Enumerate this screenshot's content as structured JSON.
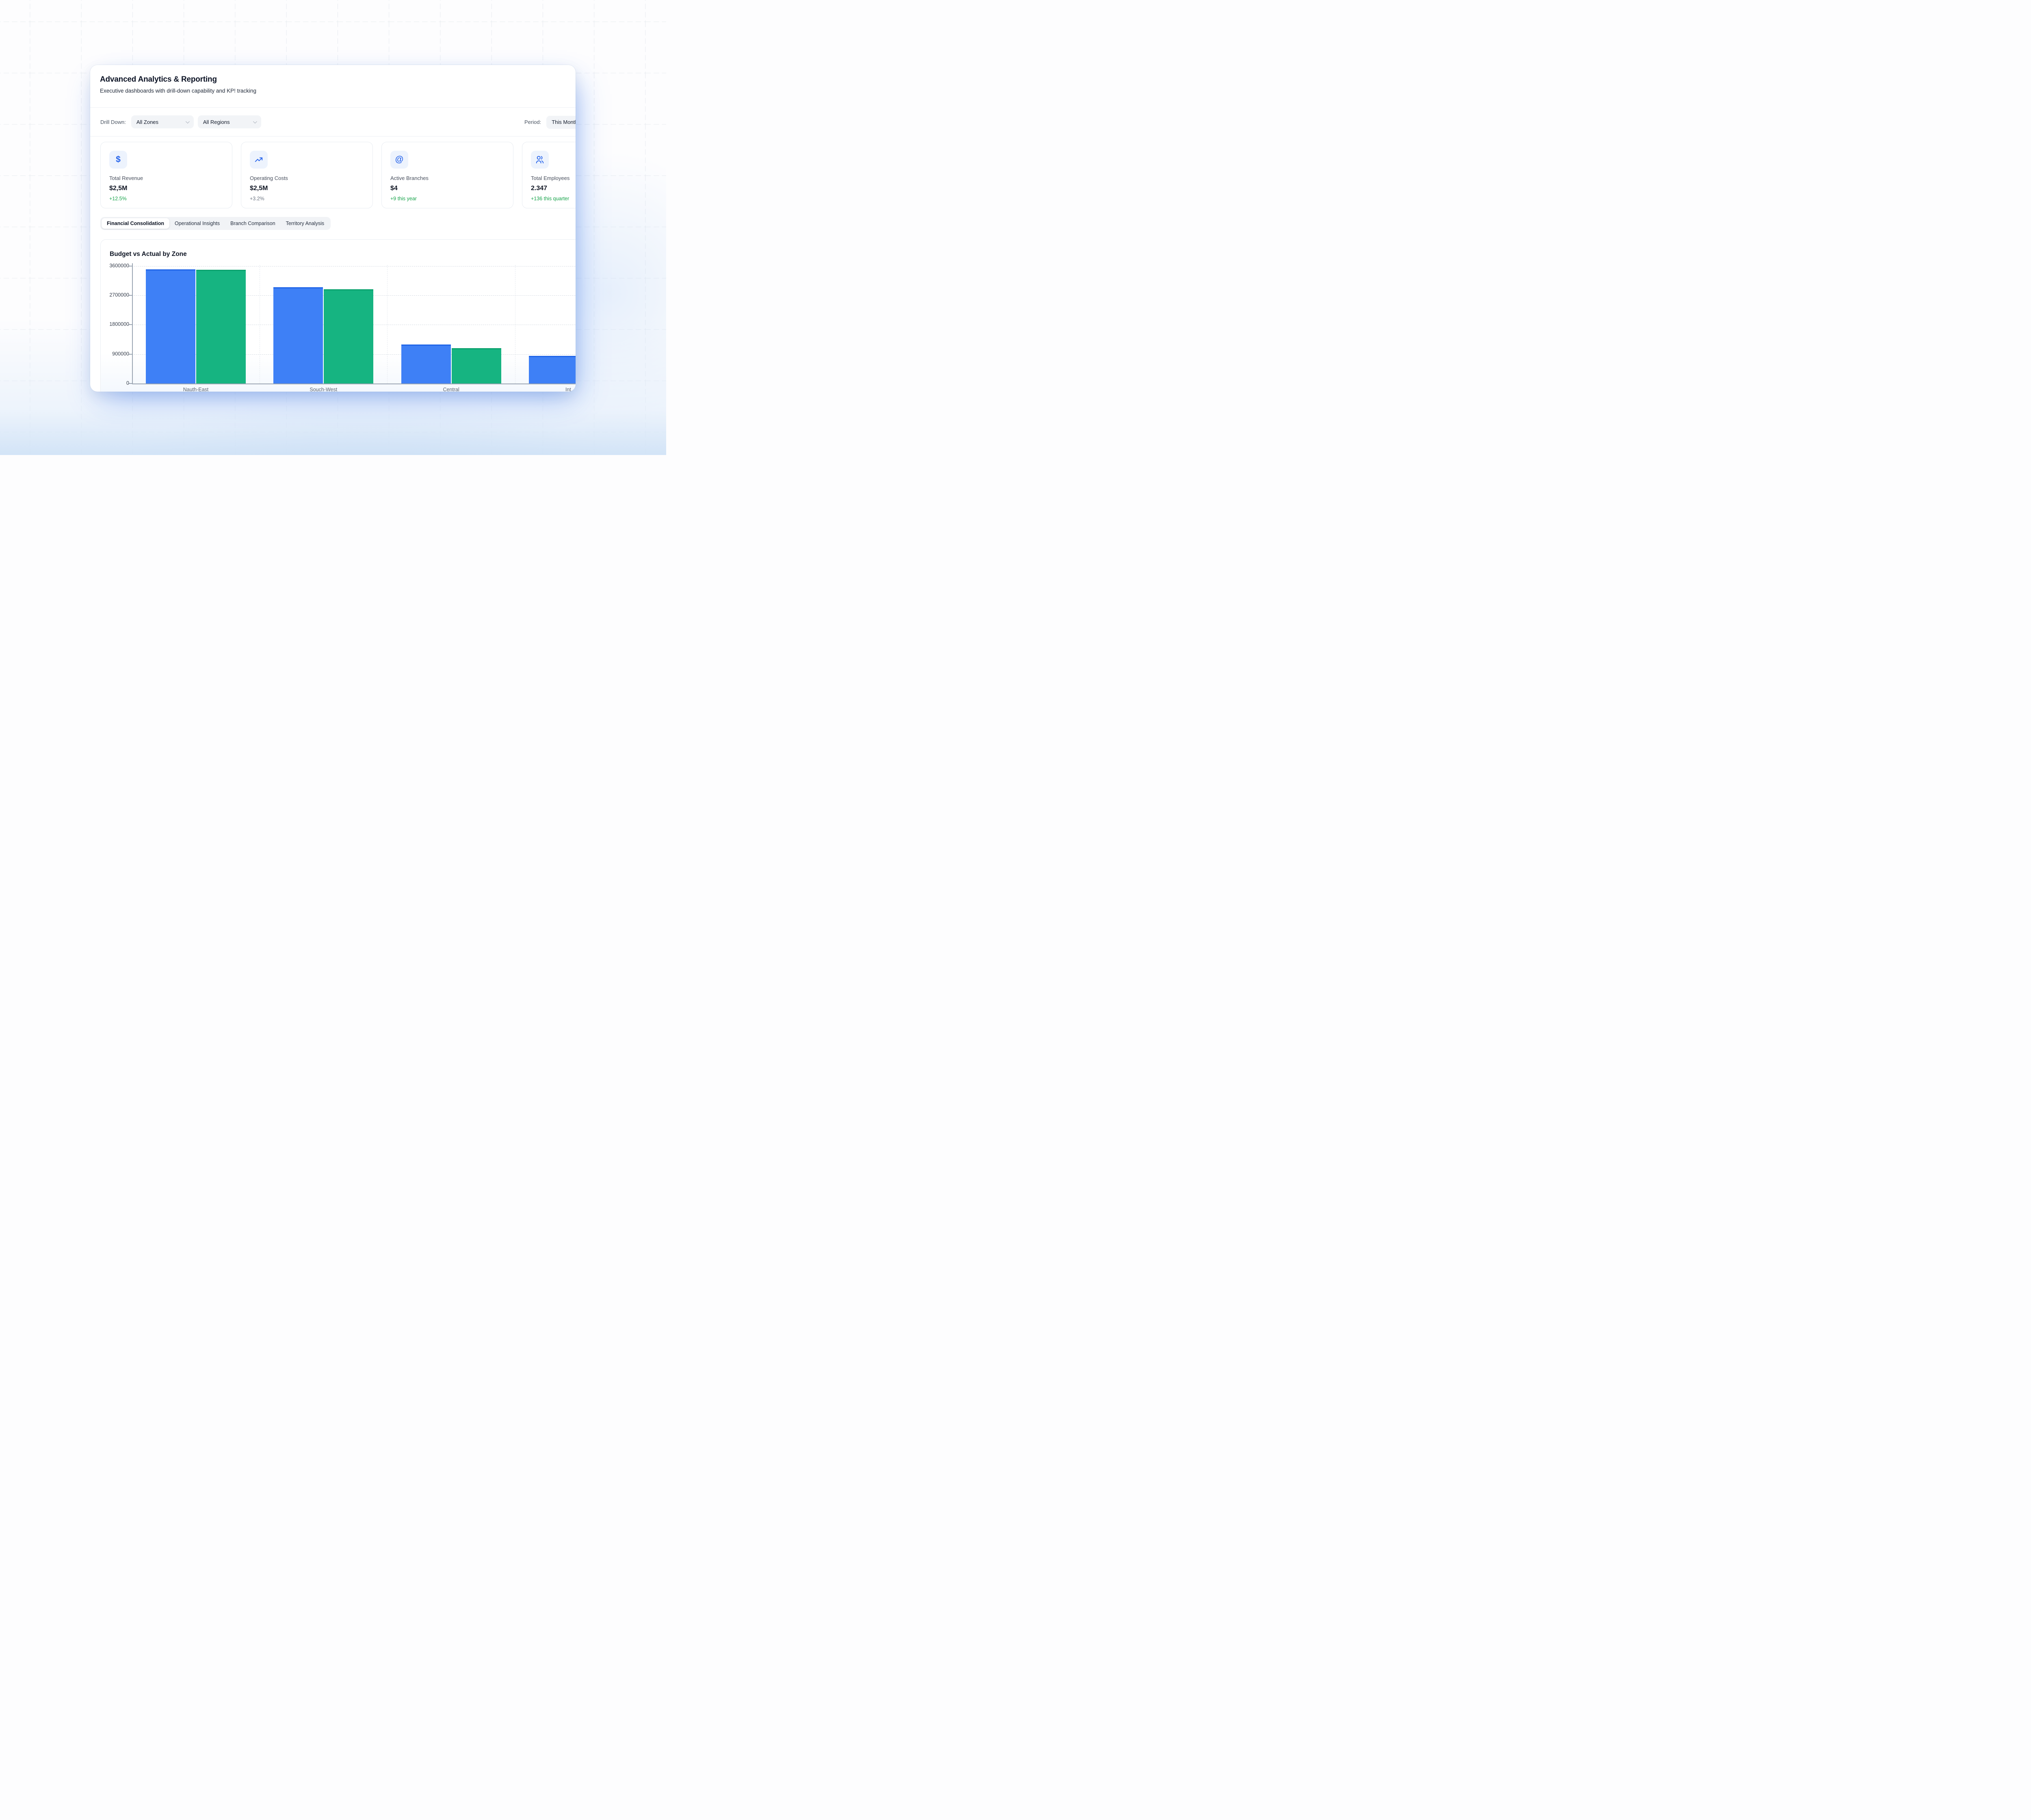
{
  "header": {
    "title": "Advanced Analytics & Reporting",
    "subtitle": "Executive dashboards with drill-down capability and KP! tracking"
  },
  "filters": {
    "drill_down_label": "Drill Down:",
    "zone_select": "All Zones",
    "region_select": "All Regions",
    "period_label": "Period:",
    "period_select": "This Month"
  },
  "kpis": [
    {
      "icon": "dollar-sign",
      "label": "Total Revenue",
      "value": "$2,5M",
      "delta": "+12.5%",
      "delta_color": "green"
    },
    {
      "icon": "trending-up",
      "label": "Operating Costs",
      "value": "$2,5M",
      "delta": "+3.2%",
      "delta_color": "gray"
    },
    {
      "icon": "at-sign",
      "label": "Active Branches",
      "value": "$4",
      "delta": "+9 this year",
      "delta_color": "green"
    },
    {
      "icon": "users",
      "label": "Total Employees",
      "value": "2.347",
      "delta": "+136 this quarter",
      "delta_color": "green"
    }
  ],
  "tabs": [
    {
      "label": "Financial Consolidation",
      "active": true
    },
    {
      "label": "Operational Insights",
      "active": false
    },
    {
      "label": "Branch Comparison",
      "active": false
    },
    {
      "label": "Territory Analysis",
      "active": false
    }
  ],
  "chart_data": {
    "type": "bar",
    "title": "Budget vs Actual by Zone",
    "categories": [
      "Nauth-East",
      "Souch-West",
      "Central",
      "Int"
    ],
    "series": [
      {
        "name": "Budget",
        "color": "#3e80f6",
        "values": [
          3500000,
          2950000,
          1190000,
          840000
        ]
      },
      {
        "name": "Actual",
        "color": "#16b481",
        "values": [
          3480000,
          2890000,
          1080000,
          null
        ]
      }
    ],
    "ylim": [
      0,
      3600000
    ],
    "yticks": [
      0,
      900000,
      1800000,
      2700000,
      3600000
    ],
    "grid": "dashed-horizontal",
    "legend": "none",
    "note": "fourth category clipped by panel edge"
  },
  "colors": {
    "accent_blue": "#2563eb",
    "bar_budget": "#3e80f6",
    "bar_actual": "#16b481",
    "delta_green": "#17a34a",
    "delta_gray": "#6e7683"
  }
}
